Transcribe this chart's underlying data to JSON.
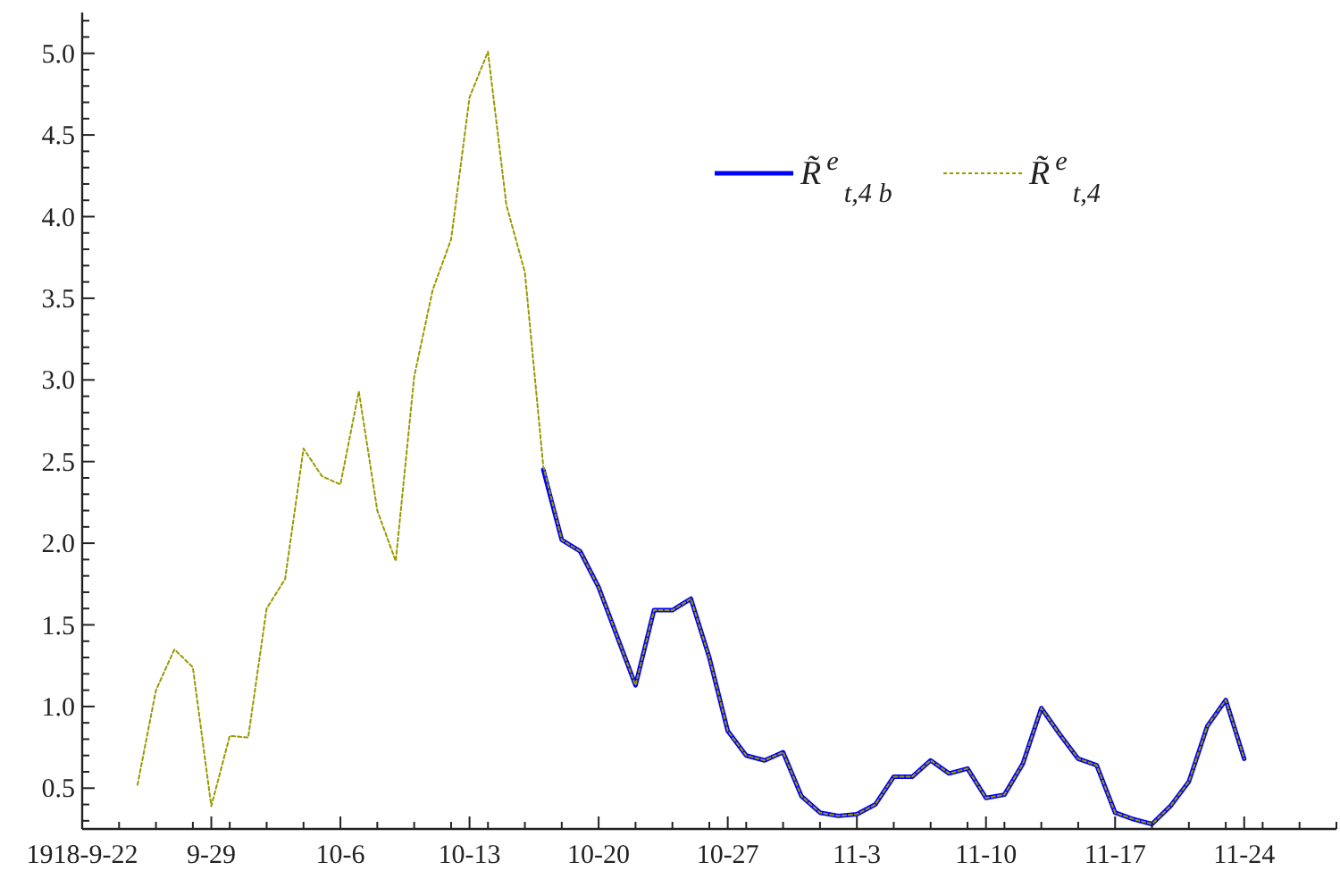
{
  "chart_data": {
    "type": "line",
    "legend": "top right",
    "grid": false,
    "marker": "none",
    "xlim": [
      "1918-09-22",
      "1918-11-29"
    ],
    "ylim": [
      0.25,
      5.25
    ],
    "xticks": [
      {
        "value": "1918-09-22",
        "label": "1918-9-22"
      },
      {
        "value": "1918-09-24",
        "label": null
      },
      {
        "value": "1918-09-26",
        "label": null
      },
      {
        "value": "1918-09-28",
        "label": null
      },
      {
        "value": "1918-09-29",
        "label": "9-29"
      },
      {
        "value": "1918-09-30",
        "label": null
      },
      {
        "value": "1918-10-02",
        "label": null
      },
      {
        "value": "1918-10-04",
        "label": null
      },
      {
        "value": "1918-10-06",
        "label": "10-6"
      },
      {
        "value": "1918-10-08",
        "label": null
      },
      {
        "value": "1918-10-10",
        "label": null
      },
      {
        "value": "1918-10-12",
        "label": null
      },
      {
        "value": "1918-10-13",
        "label": "10-13"
      },
      {
        "value": "1918-10-14",
        "label": null
      },
      {
        "value": "1918-10-16",
        "label": null
      },
      {
        "value": "1918-10-18",
        "label": null
      },
      {
        "value": "1918-10-20",
        "label": "10-20"
      },
      {
        "value": "1918-10-22",
        "label": null
      },
      {
        "value": "1918-10-24",
        "label": null
      },
      {
        "value": "1918-10-26",
        "label": null
      },
      {
        "value": "1918-10-27",
        "label": "10-27"
      },
      {
        "value": "1918-10-28",
        "label": null
      },
      {
        "value": "1918-10-30",
        "label": null
      },
      {
        "value": "1918-11-01",
        "label": null
      },
      {
        "value": "1918-11-03",
        "label": "11-3"
      },
      {
        "value": "1918-11-05",
        "label": null
      },
      {
        "value": "1918-11-07",
        "label": null
      },
      {
        "value": "1918-11-09",
        "label": null
      },
      {
        "value": "1918-11-10",
        "label": "11-10"
      },
      {
        "value": "1918-11-11",
        "label": null
      },
      {
        "value": "1918-11-13",
        "label": null
      },
      {
        "value": "1918-11-15",
        "label": null
      },
      {
        "value": "1918-11-17",
        "label": "11-17"
      },
      {
        "value": "1918-11-19",
        "label": null
      },
      {
        "value": "1918-11-21",
        "label": null
      },
      {
        "value": "1918-11-23",
        "label": null
      },
      {
        "value": "1918-11-24",
        "label": "11-24"
      },
      {
        "value": "1918-11-25",
        "label": null
      },
      {
        "value": "1918-11-27",
        "label": null
      },
      {
        "value": "1918-11-29",
        "label": null
      }
    ],
    "yticks": [
      {
        "value": 0.3,
        "label": null
      },
      {
        "value": 0.4,
        "label": null
      },
      0.5,
      {
        "value": 0.6,
        "label": null
      },
      {
        "value": 0.7,
        "label": null
      },
      {
        "value": 0.8,
        "label": null
      },
      {
        "value": 0.9,
        "label": null
      },
      {
        "value": 1,
        "label": "1.0"
      },
      {
        "value": 1.1,
        "label": null
      },
      {
        "value": 1.2,
        "label": null
      },
      {
        "value": 1.3,
        "label": null
      },
      {
        "value": 1.4,
        "label": null
      },
      1.5,
      {
        "value": 1.6,
        "label": null
      },
      {
        "value": 1.7,
        "label": null
      },
      {
        "value": 1.8,
        "label": null
      },
      {
        "value": 1.9,
        "label": null
      },
      {
        "value": 2,
        "label": "2.0"
      },
      {
        "value": 2.1,
        "label": null
      },
      {
        "value": 2.2,
        "label": null
      },
      {
        "value": 2.3,
        "label": null
      },
      {
        "value": 2.4,
        "label": null
      },
      2.5,
      {
        "value": 2.6,
        "label": null
      },
      {
        "value": 2.7,
        "label": null
      },
      {
        "value": 2.8,
        "label": null
      },
      {
        "value": 2.9,
        "label": null
      },
      {
        "value": 3,
        "label": "3.0"
      },
      {
        "value": 3.1,
        "label": null
      },
      {
        "value": 3.2,
        "label": null
      },
      {
        "value": 3.3,
        "label": null
      },
      {
        "value": 3.4,
        "label": null
      },
      3.5,
      {
        "value": 3.6,
        "label": null
      },
      {
        "value": 3.7,
        "label": null
      },
      {
        "value": 3.8,
        "label": null
      },
      {
        "value": 3.9,
        "label": null
      },
      {
        "value": 4,
        "label": "4.0"
      },
      {
        "value": 4.1,
        "label": null
      },
      {
        "value": 4.2,
        "label": null
      },
      {
        "value": 4.3,
        "label": null
      },
      {
        "value": 4.4,
        "label": null
      },
      4.5,
      {
        "value": 4.6,
        "label": null
      },
      {
        "value": 4.7,
        "label": null
      },
      {
        "value": 4.8,
        "label": null
      },
      {
        "value": 4.9,
        "label": null
      },
      {
        "value": 5,
        "label": "5.0"
      },
      {
        "value": 5.1,
        "label": null
      },
      {
        "value": 5.2,
        "label": null
      }
    ],
    "series": [
      {
        "name": "R̃$^{e}$$_{t,4 b}$",
        "color": "#0000ff",
        "line_style": "solid",
        "x": [
          "1918-10-17",
          "1918-10-18",
          "1918-10-19",
          "1918-10-20",
          "1918-10-21",
          "1918-10-22",
          "1918-10-23",
          "1918-10-24",
          "1918-10-25",
          "1918-10-26",
          "1918-10-27",
          "1918-10-28",
          "1918-10-29",
          "1918-10-30",
          "1918-10-31",
          "1918-11-01",
          "1918-11-02",
          "1918-11-03",
          "1918-11-04",
          "1918-11-05",
          "1918-11-06",
          "1918-11-07",
          "1918-11-08",
          "1918-11-09",
          "1918-11-10",
          "1918-11-11",
          "1918-11-12",
          "1918-11-13",
          "1918-11-14",
          "1918-11-15",
          "1918-11-16",
          "1918-11-17",
          "1918-11-18",
          "1918-11-19",
          "1918-11-20",
          "1918-11-21",
          "1918-11-22",
          "1918-11-23",
          "1918-11-24"
        ],
        "values": [
          2.45,
          2.02,
          1.95,
          1.73,
          1.43,
          1.13,
          1.59,
          1.59,
          1.66,
          1.3,
          0.85,
          0.7,
          0.67,
          0.72,
          0.45,
          0.35,
          0.33,
          0.34,
          0.4,
          0.57,
          0.57,
          0.67,
          0.59,
          0.62,
          0.44,
          0.46,
          0.65,
          0.99,
          0.83,
          0.68,
          0.64,
          0.35,
          0.31,
          0.28,
          0.39,
          0.54,
          0.88,
          1.04,
          0.68
        ]
      },
      {
        "name": "R̃$^{e}$$_{t,4}$",
        "color": "#999900",
        "line_style": "dotted",
        "x": [
          "1918-09-25",
          "1918-09-26",
          "1918-09-27",
          "1918-09-28",
          "1918-09-29",
          "1918-09-30",
          "1918-10-01",
          "1918-10-02",
          "1918-10-03",
          "1918-10-04",
          "1918-10-05",
          "1918-10-06",
          "1918-10-07",
          "1918-10-08",
          "1918-10-09",
          "1918-10-10",
          "1918-10-11",
          "1918-10-12",
          "1918-10-13",
          "1918-10-14",
          "1918-10-15",
          "1918-10-16",
          "1918-10-17",
          "1918-10-18",
          "1918-10-19",
          "1918-10-20",
          "1918-10-21",
          "1918-10-22",
          "1918-10-23",
          "1918-10-24",
          "1918-10-25",
          "1918-10-26",
          "1918-10-27",
          "1918-10-28",
          "1918-10-29",
          "1918-10-30",
          "1918-10-31",
          "1918-11-01",
          "1918-11-02",
          "1918-11-03",
          "1918-11-04",
          "1918-11-05",
          "1918-11-06",
          "1918-11-07",
          "1918-11-08",
          "1918-11-09",
          "1918-11-10",
          "1918-11-11",
          "1918-11-12",
          "1918-11-13",
          "1918-11-14",
          "1918-11-15",
          "1918-11-16",
          "1918-11-17",
          "1918-11-18",
          "1918-11-19",
          "1918-11-20",
          "1918-11-21",
          "1918-11-22",
          "1918-11-23",
          "1918-11-24"
        ],
        "values": [
          0.52,
          1.1,
          1.35,
          1.24,
          0.39,
          0.82,
          0.81,
          1.6,
          1.78,
          2.58,
          2.41,
          2.36,
          2.93,
          2.2,
          1.89,
          3.02,
          3.55,
          3.86,
          4.73,
          5.01,
          4.07,
          3.66,
          2.47,
          2.02,
          1.95,
          1.73,
          1.43,
          1.13,
          1.59,
          1.59,
          1.66,
          1.3,
          0.85,
          0.7,
          0.67,
          0.72,
          0.45,
          0.35,
          0.33,
          0.34,
          0.4,
          0.57,
          0.57,
          0.67,
          0.59,
          0.62,
          0.44,
          0.46,
          0.65,
          0.99,
          0.83,
          0.68,
          0.64,
          0.35,
          0.31,
          0.28,
          0.39,
          0.54,
          0.88,
          1.04,
          0.68
        ]
      }
    ]
  }
}
